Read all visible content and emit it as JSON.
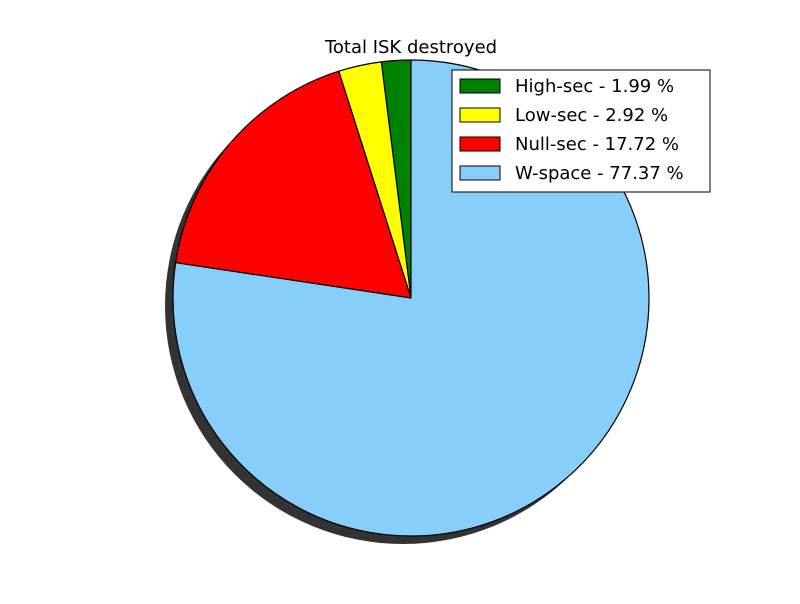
{
  "chart_data": {
    "type": "pie",
    "title": "Total ISK destroyed",
    "legend_position": "upper-right",
    "shadow": true,
    "start_angle_deg": 90,
    "direction": "counterclockwise",
    "series": [
      {
        "name": "High-sec",
        "value": 1.99,
        "color": "#008000",
        "legend_label": "High-sec - 1.99 %"
      },
      {
        "name": "Low-sec",
        "value": 2.92,
        "color": "#ffff00",
        "legend_label": "Low-sec - 2.92 %"
      },
      {
        "name": "Null-sec",
        "value": 17.72,
        "color": "#ff0000",
        "legend_label": "Null-sec - 17.72 %"
      },
      {
        "name": "W-space",
        "value": 77.37,
        "color": "#87cefa",
        "legend_label": "W-space - 77.37 %"
      }
    ]
  }
}
